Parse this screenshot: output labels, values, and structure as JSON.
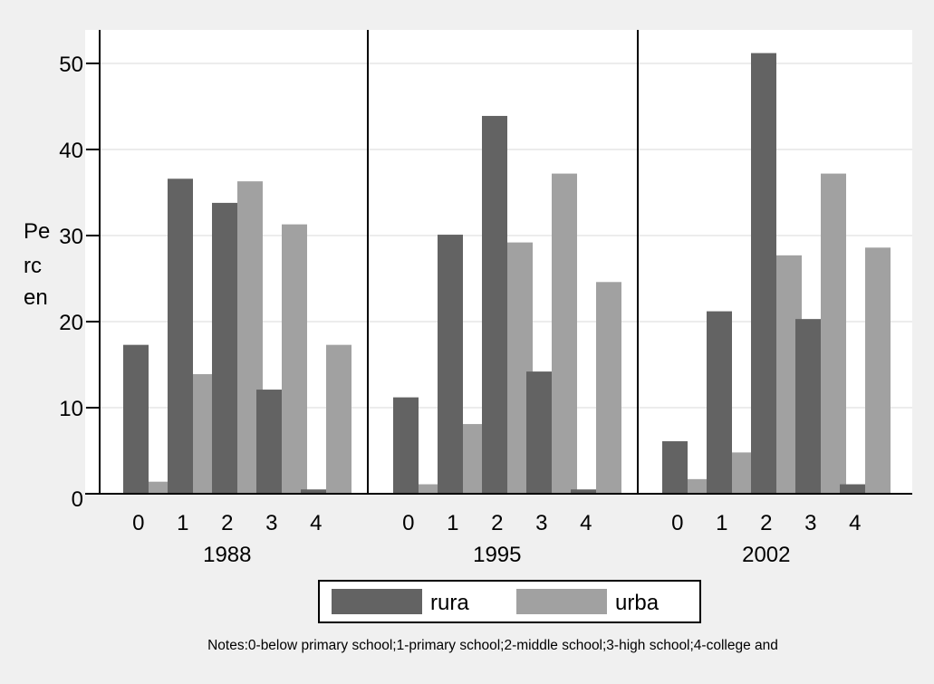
{
  "chart_data": {
    "type": "bar",
    "ylabel": "Percen",
    "ylabel_lines": [
      "Pe",
      "rc",
      "en"
    ],
    "ylim": [
      0,
      54
    ],
    "yticks": [
      0,
      10,
      20,
      30,
      40,
      50
    ],
    "grid": true,
    "groups": [
      "1988",
      "1995",
      "2002"
    ],
    "categories": [
      "0",
      "1",
      "2",
      "3",
      "4"
    ],
    "series": [
      {
        "name": "rura",
        "color": "#636363",
        "values": [
          [
            17.3,
            36.6,
            33.8,
            12.1,
            0.5
          ],
          [
            11.2,
            30.1,
            43.9,
            14.2,
            0.5
          ],
          [
            6.1,
            21.2,
            51.2,
            20.3,
            1.1
          ]
        ]
      },
      {
        "name": "urba",
        "color": "#a1a1a1",
        "values": [
          [
            1.4,
            13.9,
            36.3,
            31.3,
            17.3
          ],
          [
            1.1,
            8.1,
            29.2,
            37.2,
            24.6
          ],
          [
            1.7,
            4.8,
            27.7,
            37.2,
            28.6
          ]
        ]
      }
    ],
    "legend_position": "bottom",
    "note": "Notes:0-below primary school;1-primary school;2-middle school;3-high school;4-college and"
  }
}
